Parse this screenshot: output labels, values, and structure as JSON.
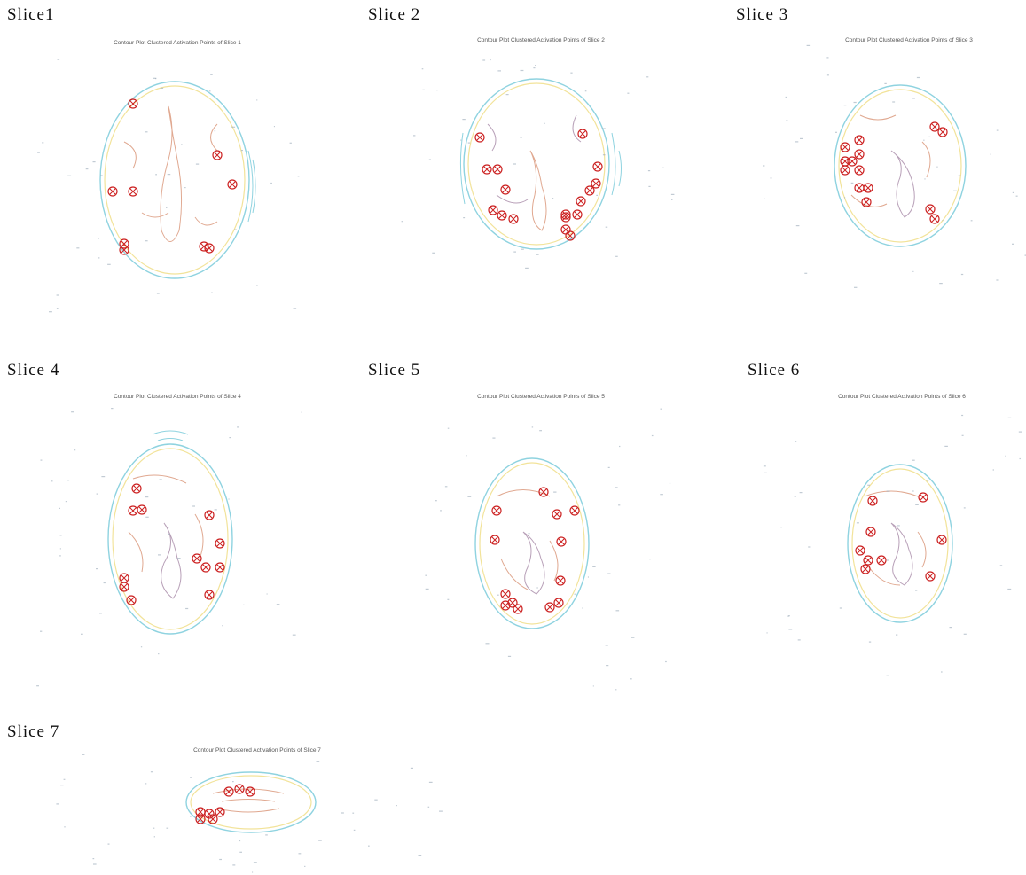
{
  "colors": {
    "outer_contour": "#8fd3e0",
    "mid_contour": "#f2e39a",
    "inner_contour": "#e0a890",
    "deep_contour": "#b8a0b8",
    "activation": "#cc2222",
    "speckle": "#9aa8b8",
    "background": "#ffffff"
  },
  "panels": [
    {
      "label": "Slice1",
      "title": "Contour Plot Clustered Activation Points of Slice 1",
      "activations": [
        [
          150,
          117
        ],
        [
          245,
          175
        ],
        [
          262,
          208
        ],
        [
          127,
          216
        ],
        [
          150,
          216
        ],
        [
          140,
          275
        ],
        [
          140,
          282
        ],
        [
          230,
          278
        ],
        [
          236,
          280
        ]
      ]
    },
    {
      "label": "Slice 2",
      "title": "Contour Plot Clustered Activation Points of Slice 2",
      "activations": [
        [
          541,
          155
        ],
        [
          657,
          151
        ],
        [
          549,
          191
        ],
        [
          561,
          191
        ],
        [
          570,
          214
        ],
        [
          674,
          188
        ],
        [
          672,
          207
        ],
        [
          665,
          215
        ],
        [
          556,
          237
        ],
        [
          566,
          243
        ],
        [
          579,
          247
        ],
        [
          638,
          245
        ],
        [
          651,
          242
        ],
        [
          638,
          259
        ],
        [
          643,
          266
        ],
        [
          655,
          227
        ],
        [
          638,
          242
        ]
      ]
    },
    {
      "label": "Slice 3",
      "title": "Contour Plot Clustered Activation Points of Slice 3",
      "activations": [
        [
          969,
          158
        ],
        [
          953,
          166
        ],
        [
          953,
          182
        ],
        [
          961,
          182
        ],
        [
          969,
          174
        ],
        [
          953,
          192
        ],
        [
          969,
          192
        ],
        [
          979,
          212
        ],
        [
          969,
          212
        ],
        [
          977,
          228
        ],
        [
          1054,
          143
        ],
        [
          1063,
          149
        ],
        [
          1049,
          236
        ],
        [
          1054,
          247
        ]
      ]
    },
    {
      "label": "Slice 4",
      "title": "Contour Plot Clustered Activation Points of Slice 4",
      "activations": [
        [
          154,
          551
        ],
        [
          150,
          576
        ],
        [
          160,
          575
        ],
        [
          236,
          581
        ],
        [
          248,
          613
        ],
        [
          222,
          630
        ],
        [
          232,
          640
        ],
        [
          248,
          640
        ],
        [
          140,
          652
        ],
        [
          140,
          662
        ],
        [
          236,
          671
        ],
        [
          148,
          677
        ]
      ]
    },
    {
      "label": "Slice 5",
      "title": "Contour Plot Clustered Activation Points of Slice 5",
      "activations": [
        [
          613,
          555
        ],
        [
          560,
          576
        ],
        [
          628,
          580
        ],
        [
          648,
          576
        ],
        [
          558,
          609
        ],
        [
          633,
          611
        ],
        [
          570,
          670
        ],
        [
          578,
          680
        ],
        [
          570,
          683
        ],
        [
          584,
          687
        ],
        [
          620,
          685
        ],
        [
          630,
          680
        ],
        [
          632,
          655
        ]
      ]
    },
    {
      "label": "Slice 6",
      "title": "Contour Plot Clustered Activation Points of Slice 6",
      "activations": [
        [
          984,
          565
        ],
        [
          1041,
          561
        ],
        [
          982,
          600
        ],
        [
          970,
          621
        ],
        [
          979,
          632
        ],
        [
          994,
          632
        ],
        [
          1062,
          609
        ],
        [
          976,
          642
        ],
        [
          1049,
          650
        ]
      ]
    },
    {
      "label": "Slice 7",
      "title": "Contour Plot Clustered Activation Points of Slice 7",
      "activations": [
        [
          258,
          893
        ],
        [
          270,
          890
        ],
        [
          282,
          893
        ],
        [
          226,
          916
        ],
        [
          236,
          918
        ],
        [
          248,
          916
        ],
        [
          226,
          924
        ],
        [
          240,
          924
        ]
      ]
    }
  ]
}
